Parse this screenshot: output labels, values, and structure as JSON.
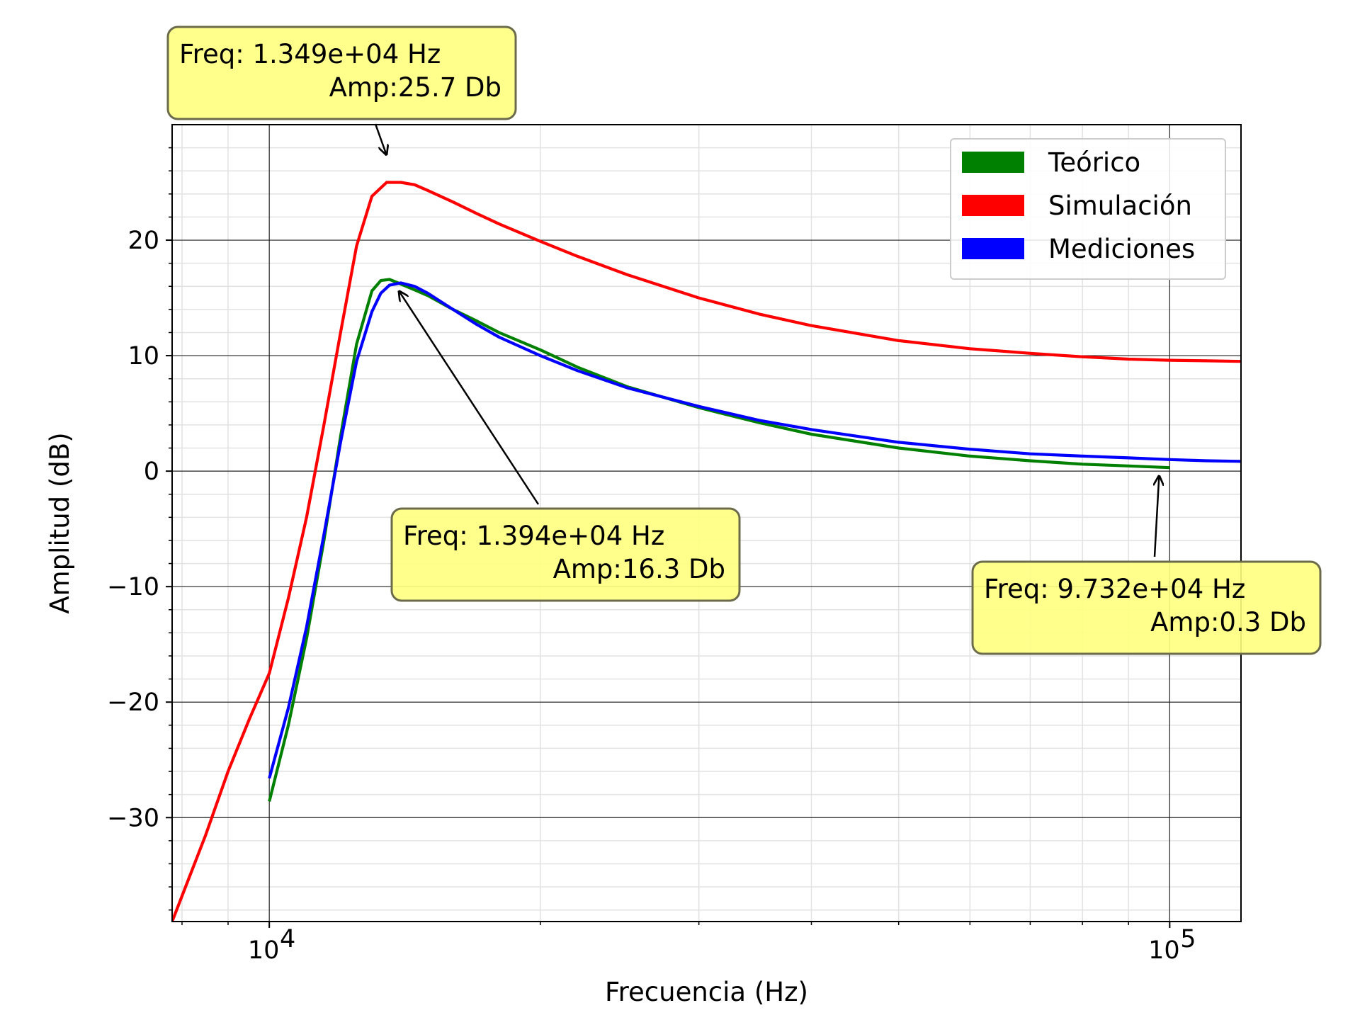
{
  "chart_data": {
    "type": "line",
    "title": "",
    "xlabel": "Frecuencia (Hz)",
    "ylabel": "Amplitud (dB)",
    "xscale": "log",
    "xlim": [
      7800,
      120000
    ],
    "ylim": [
      -39,
      30
    ],
    "xticks": [
      10000,
      100000
    ],
    "xtick_labels": [
      {
        "base": "10",
        "exp": "4"
      },
      {
        "base": "10",
        "exp": "5"
      }
    ],
    "yticks": [
      -30,
      -20,
      -10,
      0,
      10,
      20
    ],
    "ytick_labels": [
      "−30",
      "−20",
      "−10",
      "0",
      "10",
      "20"
    ],
    "grid": true,
    "legend_position": "upper right",
    "series": [
      {
        "name": "Teórico",
        "color": "#008000",
        "x": [
          10000,
          10500,
          11000,
          11500,
          12000,
          12500,
          13000,
          13300,
          13600,
          14000,
          14500,
          15000,
          16000,
          17000,
          18000,
          20000,
          22000,
          25000,
          30000,
          35000,
          40000,
          50000,
          60000,
          70000,
          80000,
          90000,
          100000
        ],
        "y": [
          -28.6,
          -22.0,
          -14.5,
          -6.0,
          3.0,
          11.0,
          15.6,
          16.5,
          16.6,
          16.2,
          15.7,
          15.2,
          14.0,
          13.0,
          12.0,
          10.5,
          9.0,
          7.3,
          5.5,
          4.2,
          3.2,
          2.0,
          1.3,
          0.9,
          0.6,
          0.45,
          0.3
        ]
      },
      {
        "name": "Simulación",
        "color": "#ff0000",
        "x": [
          7800,
          8500,
          9000,
          9500,
          10000,
          10500,
          11000,
          11500,
          12000,
          12500,
          13000,
          13500,
          14000,
          14500,
          15000,
          16000,
          17000,
          18000,
          20000,
          22000,
          25000,
          30000,
          35000,
          40000,
          50000,
          60000,
          70000,
          80000,
          90000,
          100000,
          110000,
          120000
        ],
        "y": [
          -39.0,
          -31.5,
          -26.0,
          -21.5,
          -17.5,
          -11.0,
          -4.0,
          4.0,
          12.0,
          19.5,
          23.8,
          25.0,
          25.0,
          24.8,
          24.3,
          23.3,
          22.3,
          21.4,
          19.9,
          18.6,
          17.0,
          15.0,
          13.6,
          12.6,
          11.3,
          10.6,
          10.2,
          9.9,
          9.7,
          9.6,
          9.55,
          9.5
        ]
      },
      {
        "name": "Mediciones",
        "color": "#0000ff",
        "x": [
          10000,
          10500,
          11000,
          11500,
          12000,
          12500,
          13000,
          13300,
          13600,
          14000,
          14500,
          15000,
          16000,
          17000,
          18000,
          20000,
          22000,
          25000,
          30000,
          35000,
          40000,
          50000,
          60000,
          70000,
          80000,
          90000,
          100000,
          110000,
          120000
        ],
        "y": [
          -26.6,
          -20.5,
          -13.5,
          -5.5,
          2.5,
          9.5,
          13.8,
          15.4,
          16.1,
          16.3,
          16.0,
          15.4,
          14.0,
          12.7,
          11.6,
          10.0,
          8.7,
          7.2,
          5.6,
          4.4,
          3.6,
          2.5,
          1.9,
          1.5,
          1.3,
          1.15,
          1.0,
          0.9,
          0.85
        ]
      }
    ],
    "annotations": [
      {
        "freq_line": "Freq: 1.349e+04  Hz",
        "amp_line": "Amp:25.7 Db",
        "point_x": 13490,
        "point_y": 25.7,
        "box_anchor": "above-left"
      },
      {
        "freq_line": "Freq: 1.394e+04  Hz",
        "amp_line": "Amp:16.3 Db",
        "point_x": 13940,
        "point_y": 16.3,
        "box_anchor": "below-right"
      },
      {
        "freq_line": "Freq: 9.732e+04  Hz",
        "amp_line": "Amp:0.3 Db",
        "point_x": 97320,
        "point_y": 0.3,
        "box_anchor": "below"
      }
    ],
    "annotation_box_color": "#ffff80"
  }
}
